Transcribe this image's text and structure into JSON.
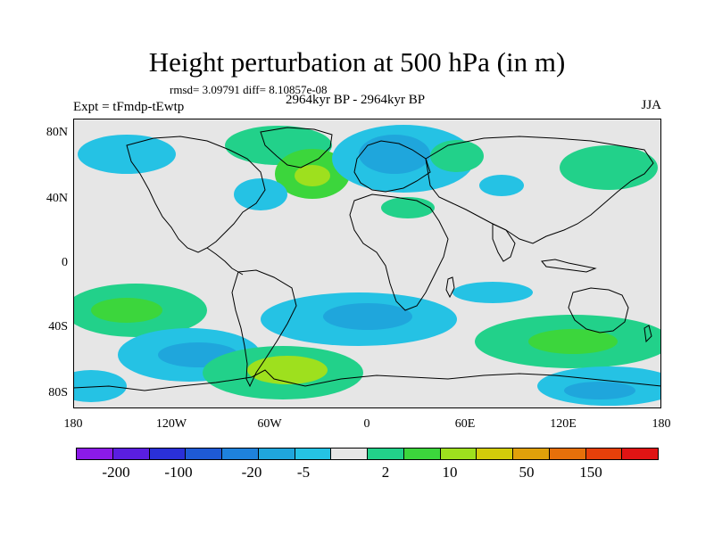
{
  "title": "Height perturbation at 500 hPa (in m)",
  "stats": "rmsd= 3.09791 diff= 8.10857e-08",
  "experiment": "Expt = tFmdp-tEwtp",
  "period": "2964kyr BP - 2964kyr BP",
  "season": "JJA",
  "lat_labels": [
    "80N",
    "40N",
    "0",
    "40S",
    "80S"
  ],
  "lon_labels": [
    "180",
    "120W",
    "60W",
    "0",
    "60E",
    "120E",
    "180"
  ],
  "colorbar": {
    "colors": [
      "#8b1ae8",
      "#5a1ee0",
      "#2a30d8",
      "#1e5ad6",
      "#1e82dc",
      "#1fa6dc",
      "#25c2e4",
      "#e6e6e6",
      "#22d18a",
      "#3cd63c",
      "#9ee01e",
      "#d2cc0a",
      "#e0a00a",
      "#e6700a",
      "#e6400a",
      "#e01414"
    ],
    "labels": [
      "-200",
      "-100",
      "-20",
      "-5",
      "2",
      "10",
      "50",
      "150"
    ]
  },
  "fill_colors": {
    "ocean": "#e6e6e6",
    "cyan": "#25c2e4",
    "light_blue": "#1fa6dc",
    "blue": "#1e82dc",
    "green": "#22d18a",
    "bright_green": "#3cd63c",
    "yellow_green": "#9ee01e"
  }
}
